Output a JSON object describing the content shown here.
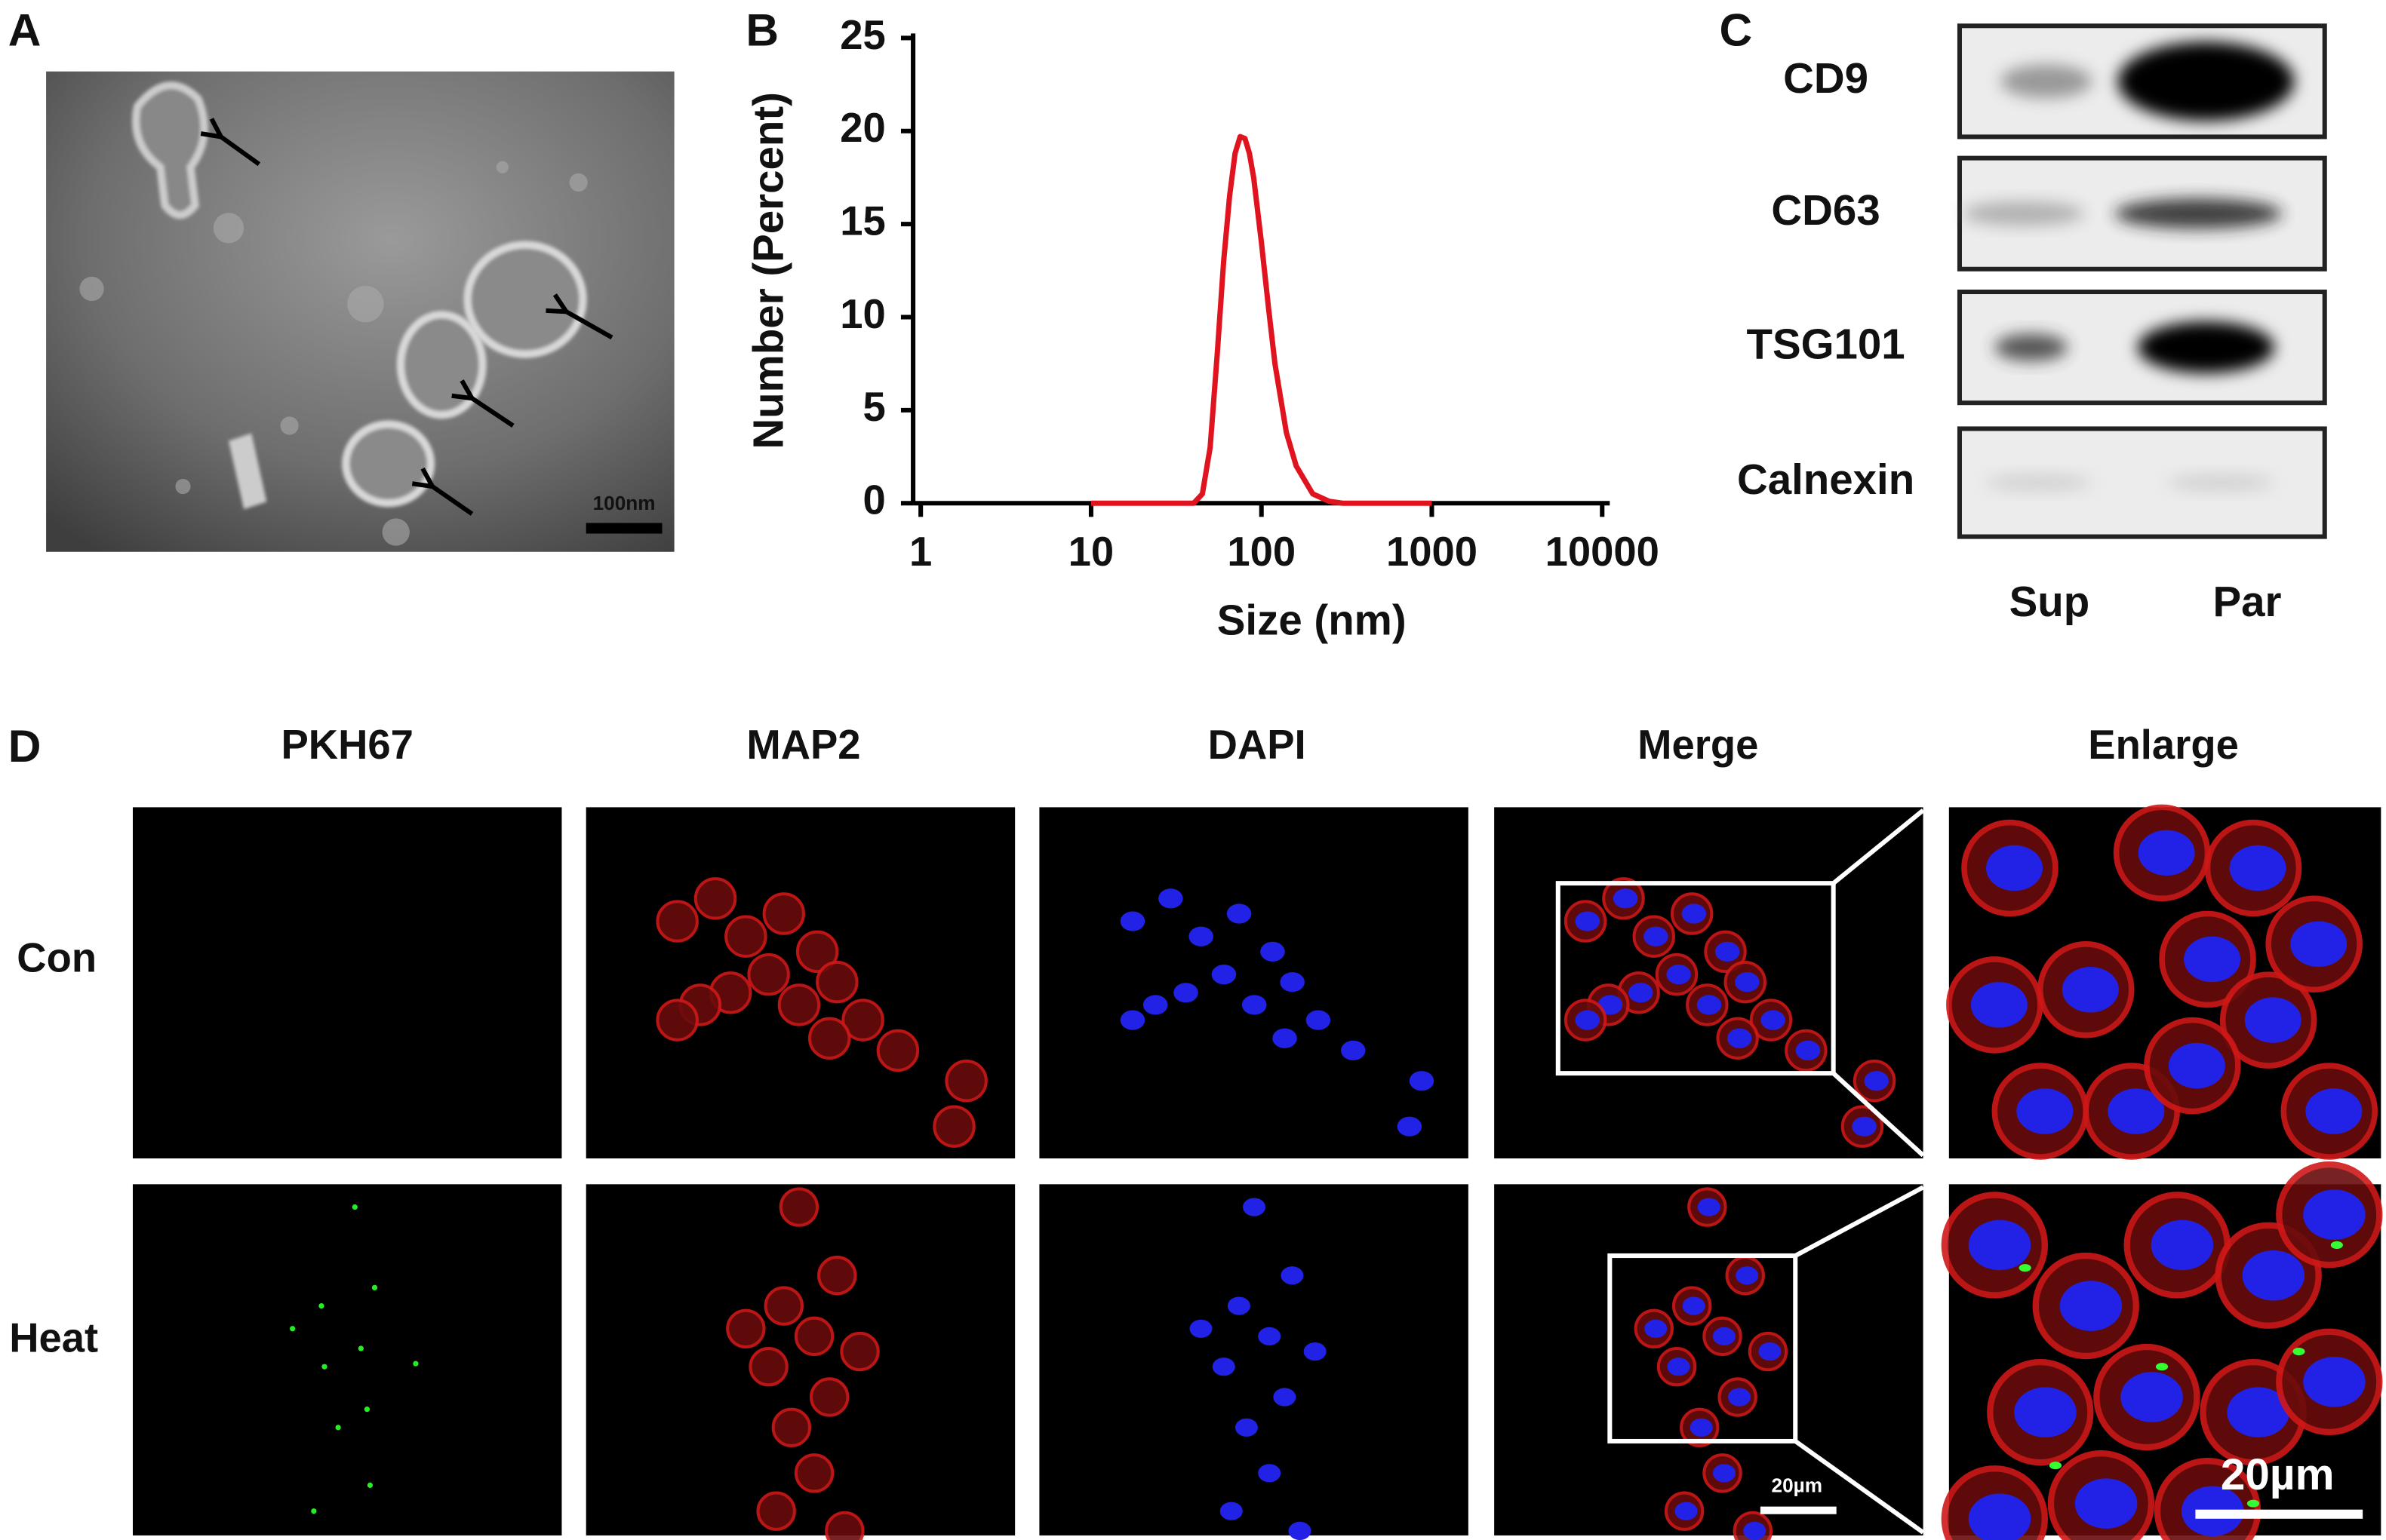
{
  "panel_labels": [
    "A",
    "B",
    "C",
    "D"
  ],
  "panel_a": {
    "scale_bar": "100nm"
  },
  "chart_data": {
    "type": "line",
    "x_label": "Size (nm)",
    "y_label": "Number (Percent)",
    "xscale": "log",
    "color": "#e0141e",
    "x": [
      10,
      40,
      45,
      50,
      55,
      60,
      65,
      70,
      75,
      80,
      85,
      90,
      100,
      110,
      120,
      140,
      160,
      200,
      250,
      300,
      400,
      1000
    ],
    "values": [
      0,
      0,
      0.5,
      3,
      8,
      13,
      16.5,
      18.8,
      19.7,
      19.6,
      18.8,
      17.5,
      14,
      10.5,
      7.5,
      3.8,
      2,
      0.5,
      0.1,
      0,
      0,
      0
    ],
    "xlim": [
      1,
      10000
    ],
    "xticks": [
      1,
      10,
      100,
      1000,
      10000
    ],
    "ylim": [
      0,
      25
    ],
    "yticks": [
      0,
      5,
      10,
      15,
      20,
      25
    ]
  },
  "panel_c": {
    "proteins": [
      "CD9",
      "CD63",
      "TSG101",
      "Calnexin"
    ],
    "lanes": [
      "Sup",
      "Par"
    ]
  },
  "panel_d": {
    "columns": [
      "PKH67",
      "MAP2",
      "DAPI",
      "Merge",
      "Enlarge"
    ],
    "rows": [
      "Con",
      "Heat"
    ],
    "scale_bars": [
      "20µm",
      "20µm"
    ]
  }
}
